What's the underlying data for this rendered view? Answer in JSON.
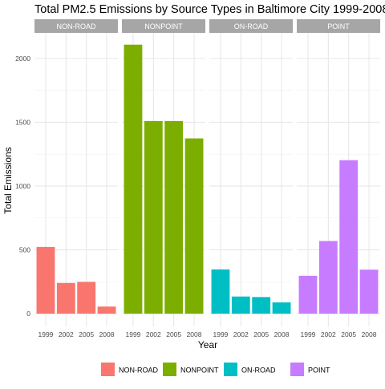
{
  "chart_data": {
    "type": "bar",
    "title": "Total PM2.5 Emissions by Source Types in Baltimore City 1999-2008",
    "xlabel": "Year",
    "ylabel": "Total Emissions",
    "categories": [
      "1999",
      "2002",
      "2005",
      "2008"
    ],
    "ylim": [
      -100,
      2200
    ],
    "yticks": [
      0,
      500,
      1000,
      1500,
      2000
    ],
    "grid": true,
    "legend_position": "bottom",
    "panels": [
      {
        "name": "NON-ROAD",
        "color": "#F8766D",
        "values": [
          522.9,
          240.8,
          248.9,
          55.8
        ]
      },
      {
        "name": "NONPOINT",
        "color": "#7CAE00",
        "values": [
          2107.6,
          1509.5,
          1509.5,
          1373.2
        ]
      },
      {
        "name": "ON-ROAD",
        "color": "#00BFC4",
        "values": [
          346.8,
          134.3,
          130.4,
          88.3
        ]
      },
      {
        "name": "POINT",
        "color": "#C77CFF",
        "values": [
          296.8,
          569.3,
          1202.5,
          344.98
        ]
      }
    ]
  }
}
